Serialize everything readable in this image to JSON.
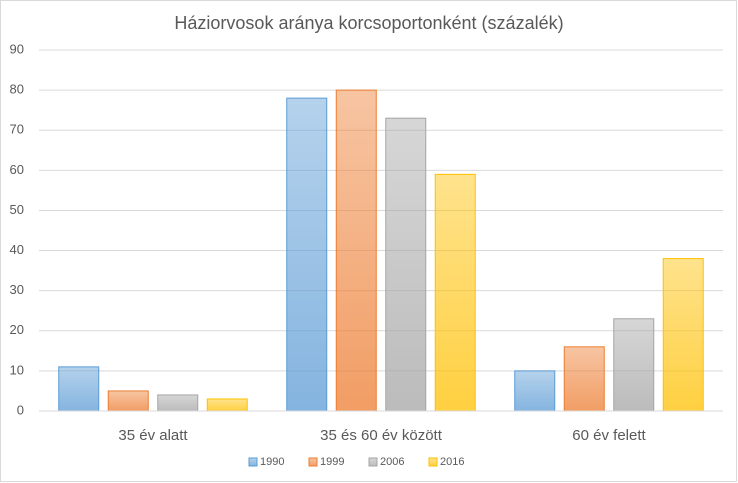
{
  "chart_data": {
    "type": "bar",
    "title": "Háziorvosok aránya korcsoportonként (százalék)",
    "categories": [
      "35 év alatt",
      "35 és 60 év között",
      "60 év felett"
    ],
    "series": [
      {
        "name": "1990",
        "color": "#5b9bd5",
        "values": [
          11,
          78,
          10
        ]
      },
      {
        "name": "1999",
        "color": "#ed7d31",
        "values": [
          5,
          80,
          16
        ]
      },
      {
        "name": "2006",
        "color": "#a5a5a5",
        "values": [
          4,
          73,
          23
        ]
      },
      {
        "name": "2016",
        "color": "#ffc000",
        "values": [
          3,
          59,
          38
        ]
      }
    ],
    "ylim": [
      0,
      90
    ],
    "yticks": [
      0,
      10,
      20,
      30,
      40,
      50,
      60,
      70,
      80,
      90
    ],
    "grid": true,
    "legend": "bottom"
  }
}
